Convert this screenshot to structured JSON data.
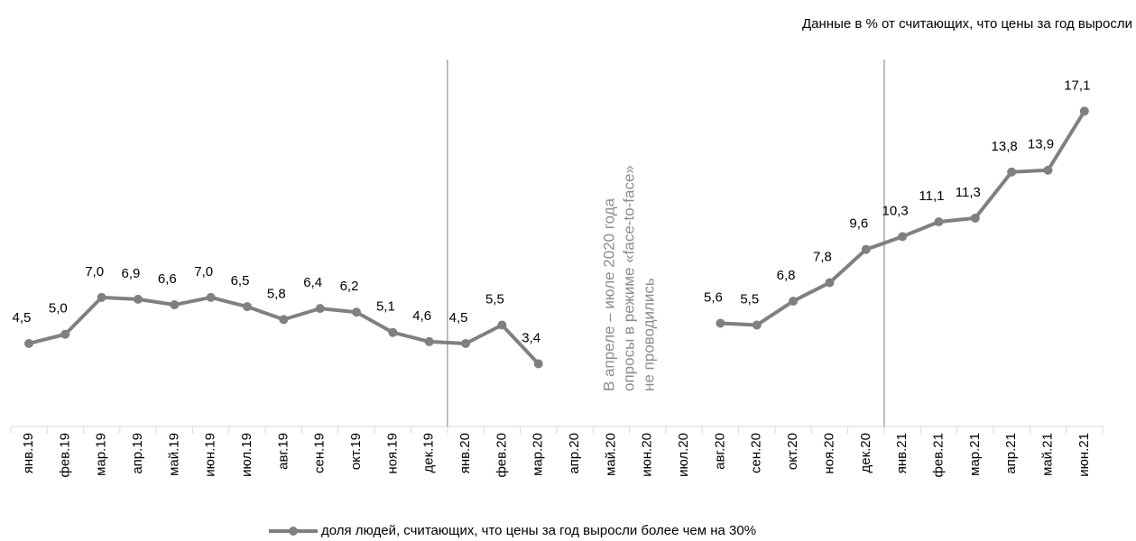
{
  "chart_data": {
    "type": "line",
    "subtitle": "Данные в % от считающих, что цены за год выросли",
    "annotation": [
      "В апреле – июле 2020 года",
      "опросы в режиме «face-to-face»",
      "не проводились"
    ],
    "categories": [
      "янв.19",
      "фев.19",
      "мар.19",
      "апр.19",
      "май.19",
      "июн.19",
      "июл.19",
      "авг.19",
      "сен.19",
      "окт.19",
      "ноя.19",
      "дек.19",
      "янв.20",
      "фев.20",
      "мар.20",
      "апр.20",
      "май.20",
      "июн.20",
      "июл.20",
      "авг.20",
      "сен.20",
      "окт.20",
      "ноя.20",
      "дек.20",
      "янв.21",
      "фев.21",
      "мар.21",
      "апр.21",
      "май.21",
      "июн.21"
    ],
    "series": [
      {
        "name": "доля людей, считающих, что цены за год выросли более чем на 30%",
        "color": "#808080",
        "values": [
          4.5,
          5.0,
          7.0,
          6.9,
          6.6,
          7.0,
          6.5,
          5.8,
          6.4,
          6.2,
          5.1,
          4.6,
          4.5,
          5.5,
          3.4,
          null,
          null,
          null,
          null,
          5.6,
          5.5,
          6.8,
          7.8,
          9.6,
          10.3,
          11.1,
          11.3,
          13.8,
          13.9,
          17.1
        ],
        "value_labels": [
          "4,5",
          "5,0",
          "7,0",
          "6,9",
          "6,6",
          "7,0",
          "6,5",
          "5,8",
          "6,4",
          "6,2",
          "5,1",
          "4,6",
          "4,5",
          "5,5",
          "3,4",
          null,
          null,
          null,
          null,
          "5,6",
          "5,5",
          "6,8",
          "7,8",
          "9,6",
          "10,3",
          "11,1",
          "11,3",
          "13,8",
          "13,9",
          "17,1"
        ]
      }
    ],
    "ylim": [
      0,
      20
    ],
    "grid": false,
    "legend": "bottom"
  }
}
